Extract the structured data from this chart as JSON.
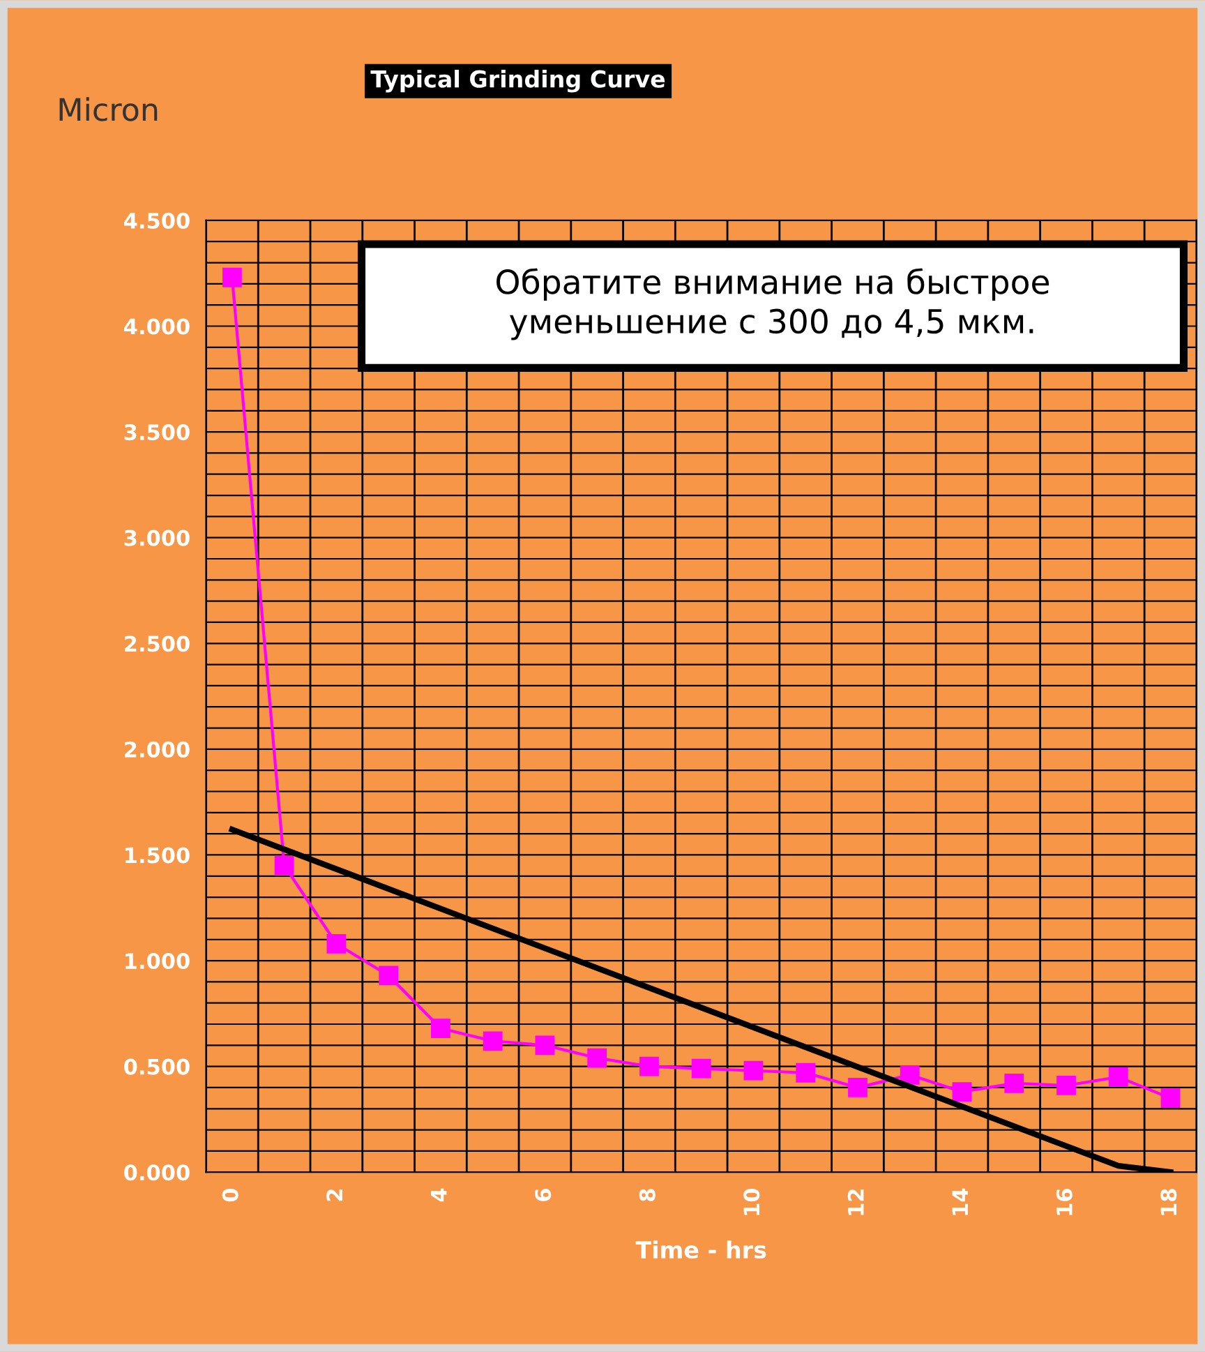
{
  "chart_data": {
    "type": "line",
    "title": "Typical Grinding Curve",
    "ylabel": "Micron",
    "xlabel": "Time - hrs",
    "x": [
      0,
      1,
      2,
      3,
      4,
      5,
      6,
      7,
      8,
      9,
      10,
      11,
      12,
      13,
      14,
      15,
      16,
      17,
      18
    ],
    "series": [
      {
        "color": "#ff00ff",
        "marker": "square",
        "values": [
          4.23,
          1.45,
          1.08,
          0.93,
          0.68,
          0.62,
          0.6,
          0.54,
          0.5,
          0.49,
          0.48,
          0.47,
          0.4,
          0.46,
          0.38,
          0.42,
          0.41,
          0.45,
          0.35
        ]
      },
      {
        "color": "#000000",
        "marker": "none",
        "x": [
          0,
          17,
          18
        ],
        "values": [
          1.62,
          0.03,
          0.0
        ]
      }
    ],
    "xlim": [
      -0.5,
      18.5
    ],
    "xticks": [
      0,
      2,
      4,
      6,
      8,
      10,
      12,
      14,
      16,
      18,
      {
        "value": -0.5,
        "label": null
      },
      {
        "value": 0.5,
        "label": null
      },
      {
        "value": 1.5,
        "label": null
      },
      {
        "value": 2.5,
        "label": null
      },
      {
        "value": 3.5,
        "label": null
      },
      {
        "value": 4.5,
        "label": null
      },
      {
        "value": 5.5,
        "label": null
      },
      {
        "value": 6.5,
        "label": null
      },
      {
        "value": 7.5,
        "label": null
      },
      {
        "value": 8.5,
        "label": null
      },
      {
        "value": 9.5,
        "label": null
      },
      {
        "value": 10.5,
        "label": null
      },
      {
        "value": 11.5,
        "label": null
      },
      {
        "value": 12.5,
        "label": null
      },
      {
        "value": 13.5,
        "label": null
      },
      {
        "value": 14.5,
        "label": null
      },
      {
        "value": 15.5,
        "label": null
      },
      {
        "value": 16.5,
        "label": null
      },
      {
        "value": 17.5,
        "label": null
      },
      {
        "value": 18.5,
        "label": null
      }
    ],
    "ylim": [
      0,
      4.5
    ],
    "yticks": [
      {
        "value": 0,
        "label": "0.000"
      },
      {
        "value": 0.5,
        "label": "0.500"
      },
      {
        "value": 1,
        "label": "1.000"
      },
      {
        "value": 1.5,
        "label": "1.500"
      },
      {
        "value": 2,
        "label": "2.000"
      },
      {
        "value": 2.5,
        "label": "2.500"
      },
      {
        "value": 3,
        "label": "3.000"
      },
      {
        "value": 3.5,
        "label": "3.500"
      },
      {
        "value": 4,
        "label": "4.000"
      },
      {
        "value": 4.5,
        "label": "4.500"
      },
      {
        "value": 0.1,
        "label": null
      },
      {
        "value": 0.2,
        "label": null
      },
      {
        "value": 0.3,
        "label": null
      },
      {
        "value": 0.4,
        "label": null
      },
      {
        "value": 0.6,
        "label": null
      },
      {
        "value": 0.7,
        "label": null
      },
      {
        "value": 0.8,
        "label": null
      },
      {
        "value": 0.9,
        "label": null
      },
      {
        "value": 1.1,
        "label": null
      },
      {
        "value": 1.2,
        "label": null
      },
      {
        "value": 1.3,
        "label": null
      },
      {
        "value": 1.4,
        "label": null
      },
      {
        "value": 1.6,
        "label": null
      },
      {
        "value": 1.7,
        "label": null
      },
      {
        "value": 1.8,
        "label": null
      },
      {
        "value": 1.9,
        "label": null
      },
      {
        "value": 2.1,
        "label": null
      },
      {
        "value": 2.2,
        "label": null
      },
      {
        "value": 2.3,
        "label": null
      },
      {
        "value": 2.4,
        "label": null
      },
      {
        "value": 2.6,
        "label": null
      },
      {
        "value": 2.7,
        "label": null
      },
      {
        "value": 2.8,
        "label": null
      },
      {
        "value": 2.9,
        "label": null
      },
      {
        "value": 3.1,
        "label": null
      },
      {
        "value": 3.2,
        "label": null
      },
      {
        "value": 3.3,
        "label": null
      },
      {
        "value": 3.4,
        "label": null
      },
      {
        "value": 3.6,
        "label": null
      },
      {
        "value": 3.7,
        "label": null
      },
      {
        "value": 3.8,
        "label": null
      },
      {
        "value": 3.9,
        "label": null
      },
      {
        "value": 4.1,
        "label": null
      },
      {
        "value": 4.2,
        "label": null
      },
      {
        "value": 4.3,
        "label": null
      },
      {
        "value": 4.4,
        "label": null
      }
    ],
    "grid": true,
    "annotations": [
      "Обратите внимание на быстрое уменьшение с 300 до 4,5 мкм."
    ]
  }
}
